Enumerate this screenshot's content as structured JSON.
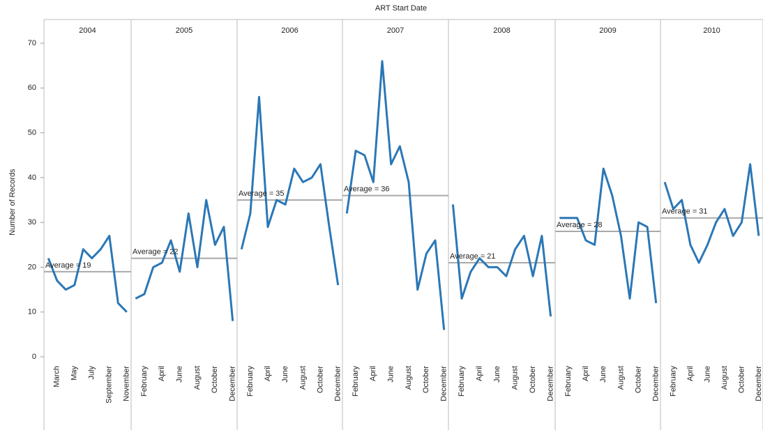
{
  "chart_data": {
    "type": "line",
    "title": "ART Start Date",
    "y_label": "Number of Records",
    "ylim": [
      0,
      70
    ],
    "yticks": [
      0,
      10,
      20,
      30,
      40,
      50,
      60,
      70
    ],
    "color": "#2b77b6",
    "average_color": "#a9a9a9",
    "panels": [
      {
        "title": "2004",
        "categories": [
          null,
          "March",
          null,
          "May",
          null,
          "July",
          null,
          "September",
          null,
          "November"
        ],
        "values": [
          22,
          17,
          15,
          16,
          24,
          22,
          24,
          27,
          12,
          10
        ],
        "average": 19,
        "average_label": "Average = 19"
      },
      {
        "title": "2005",
        "categories": [
          null,
          "February",
          null,
          "April",
          null,
          "June",
          null,
          "August",
          null,
          "October",
          null,
          "December"
        ],
        "values": [
          13,
          14,
          20,
          21,
          26,
          19,
          32,
          20,
          35,
          25,
          29,
          8
        ],
        "average": 22,
        "average_label": "Average = 22"
      },
      {
        "title": "2006",
        "categories": [
          null,
          "February",
          null,
          "April",
          null,
          "June",
          null,
          "August",
          null,
          "October",
          null,
          "December"
        ],
        "values": [
          24,
          32,
          58,
          29,
          35,
          34,
          42,
          39,
          40,
          43,
          29,
          16
        ],
        "average": 35,
        "average_label": "Average = 35"
      },
      {
        "title": "2007",
        "categories": [
          null,
          "February",
          null,
          "April",
          null,
          "June",
          null,
          "August",
          null,
          "October",
          null,
          "December"
        ],
        "values": [
          32,
          46,
          45,
          39,
          66,
          43,
          47,
          39,
          15,
          23,
          26,
          6
        ],
        "average": 36,
        "average_label": "Average = 36"
      },
      {
        "title": "2008",
        "categories": [
          null,
          "February",
          null,
          "April",
          null,
          "June",
          null,
          "August",
          null,
          "October",
          null,
          "December"
        ],
        "values": [
          34,
          13,
          19,
          22,
          20,
          20,
          18,
          24,
          27,
          18,
          27,
          9
        ],
        "average": 21,
        "average_label": "Average = 21"
      },
      {
        "title": "2009",
        "categories": [
          null,
          "February",
          null,
          "April",
          null,
          "June",
          null,
          "August",
          null,
          "October",
          null,
          "December"
        ],
        "values": [
          31,
          31,
          31,
          26,
          25,
          42,
          36,
          27,
          13,
          30,
          29,
          12
        ],
        "average": 28,
        "average_label": "Average = 28"
      },
      {
        "title": "2010",
        "categories": [
          null,
          "February",
          null,
          "April",
          null,
          "June",
          null,
          "August",
          null,
          "October",
          null,
          "December"
        ],
        "values": [
          39,
          33,
          35,
          25,
          21,
          25,
          30,
          33,
          27,
          30,
          43,
          27
        ],
        "average": 31,
        "average_label": "Average = 31"
      }
    ]
  }
}
